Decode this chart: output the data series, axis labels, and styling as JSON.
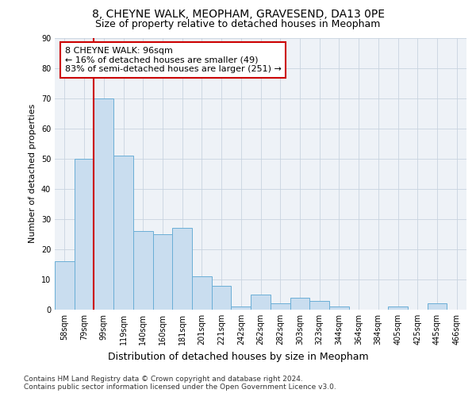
{
  "title1": "8, CHEYNE WALK, MEOPHAM, GRAVESEND, DA13 0PE",
  "title2": "Size of property relative to detached houses in Meopham",
  "xlabel": "Distribution of detached houses by size in Meopham",
  "ylabel": "Number of detached properties",
  "categories": [
    "58sqm",
    "79sqm",
    "99sqm",
    "119sqm",
    "140sqm",
    "160sqm",
    "181sqm",
    "201sqm",
    "221sqm",
    "242sqm",
    "262sqm",
    "282sqm",
    "303sqm",
    "323sqm",
    "344sqm",
    "364sqm",
    "384sqm",
    "405sqm",
    "425sqm",
    "445sqm",
    "466sqm"
  ],
  "values": [
    16,
    50,
    70,
    51,
    26,
    25,
    27,
    11,
    8,
    1,
    5,
    2,
    4,
    3,
    1,
    0,
    0,
    1,
    0,
    2,
    0
  ],
  "bar_color": "#c9ddef",
  "bar_edge_color": "#6aaed6",
  "annotation_text": "8 CHEYNE WALK: 96sqm\n← 16% of detached houses are smaller (49)\n83% of semi-detached houses are larger (251) →",
  "annotation_box_color": "white",
  "annotation_box_edge_color": "#cc0000",
  "red_line_x": 1.5,
  "ylim": [
    0,
    90
  ],
  "yticks": [
    0,
    10,
    20,
    30,
    40,
    50,
    60,
    70,
    80,
    90
  ],
  "plot_bg": "#eef2f7",
  "footer_text": "Contains HM Land Registry data © Crown copyright and database right 2024.\nContains public sector information licensed under the Open Government Licence v3.0.",
  "title1_fontsize": 10,
  "title2_fontsize": 9,
  "xlabel_fontsize": 9,
  "ylabel_fontsize": 8,
  "tick_fontsize": 7,
  "annotation_fontsize": 8,
  "footer_fontsize": 6.5
}
